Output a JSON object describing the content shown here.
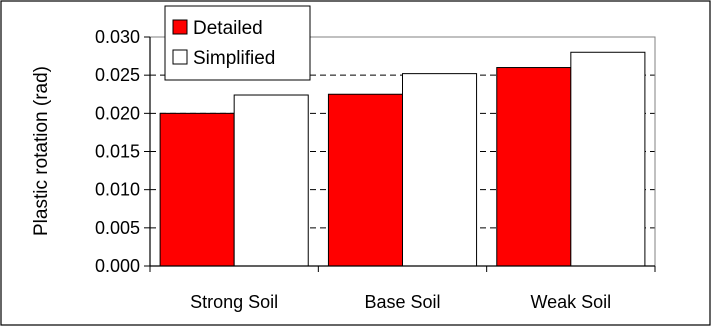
{
  "chart_data": {
    "type": "bar",
    "title": "",
    "xlabel": "",
    "ylabel": "Plastic rotation (rad)",
    "categories": [
      "Strong Soil",
      "Base Soil",
      "Weak Soil"
    ],
    "series": [
      {
        "name": "Detailed",
        "values": [
          0.02,
          0.0225,
          0.026
        ],
        "color": "#ff0000"
      },
      {
        "name": "Simplified",
        "values": [
          0.0224,
          0.0252,
          0.028
        ],
        "color": "#ffffff"
      }
    ],
    "ylim": [
      0,
      0.03
    ],
    "yticks": [
      "0.000",
      "0.005",
      "0.010",
      "0.015",
      "0.020",
      "0.025",
      "0.030"
    ],
    "grid": "dashed horizontal",
    "legend_position": "top-left"
  }
}
